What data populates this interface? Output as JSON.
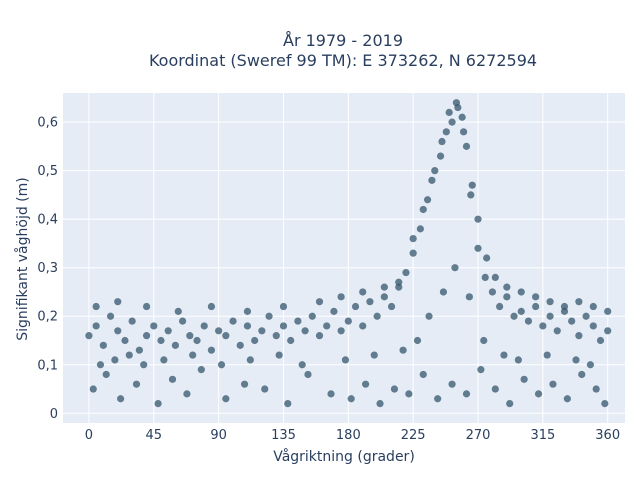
{
  "chart_data": {
    "type": "scatter",
    "title": [
      "År 1979 - 2019",
      "Koordinat (Sweref 99 TM): E 373262, N 6272594"
    ],
    "xlabel": "Vågriktning (grader)",
    "ylabel": "Signifikant våghöjd (m)",
    "xlim": [
      -18,
      372
    ],
    "ylim": [
      -0.02,
      0.66
    ],
    "x_ticks": [
      0,
      45,
      90,
      135,
      180,
      225,
      270,
      315,
      360
    ],
    "x_tick_labels": [
      "0",
      "45",
      "90",
      "135",
      "180",
      "225",
      "270",
      "315",
      "360"
    ],
    "y_ticks": [
      0,
      0.1,
      0.2,
      0.3,
      0.4,
      0.5,
      0.6
    ],
    "y_tick_labels": [
      "0",
      "0,1",
      "0,2",
      "0,3",
      "0,4",
      "0,5",
      "0,6"
    ],
    "grid": true,
    "marker_color": "#34566c",
    "plot_background": "#e5ecf6",
    "series": [
      {
        "points": [
          [
            0,
            0.16
          ],
          [
            5,
            0.18
          ],
          [
            10,
            0.14
          ],
          [
            15,
            0.2
          ],
          [
            20,
            0.17
          ],
          [
            25,
            0.15
          ],
          [
            30,
            0.19
          ],
          [
            35,
            0.13
          ],
          [
            40,
            0.16
          ],
          [
            45,
            0.18
          ],
          [
            50,
            0.15
          ],
          [
            55,
            0.17
          ],
          [
            60,
            0.14
          ],
          [
            65,
            0.19
          ],
          [
            70,
            0.16
          ],
          [
            75,
            0.15
          ],
          [
            80,
            0.18
          ],
          [
            85,
            0.13
          ],
          [
            90,
            0.17
          ],
          [
            95,
            0.16
          ],
          [
            100,
            0.19
          ],
          [
            105,
            0.14
          ],
          [
            110,
            0.18
          ],
          [
            115,
            0.15
          ],
          [
            120,
            0.17
          ],
          [
            125,
            0.2
          ],
          [
            130,
            0.16
          ],
          [
            135,
            0.18
          ],
          [
            140,
            0.15
          ],
          [
            145,
            0.19
          ],
          [
            150,
            0.17
          ],
          [
            155,
            0.2
          ],
          [
            160,
            0.16
          ],
          [
            165,
            0.18
          ],
          [
            170,
            0.21
          ],
          [
            175,
            0.17
          ],
          [
            180,
            0.19
          ],
          [
            185,
            0.22
          ],
          [
            190,
            0.18
          ],
          [
            195,
            0.23
          ],
          [
            200,
            0.2
          ],
          [
            205,
            0.24
          ],
          [
            210,
            0.22
          ],
          [
            215,
            0.26
          ],
          [
            220,
            0.29
          ],
          [
            225,
            0.33
          ],
          [
            230,
            0.38
          ],
          [
            235,
            0.44
          ],
          [
            240,
            0.5
          ],
          [
            245,
            0.56
          ],
          [
            250,
            0.62
          ],
          [
            255,
            0.64
          ],
          [
            260,
            0.58
          ],
          [
            265,
            0.45
          ],
          [
            270,
            0.34
          ],
          [
            275,
            0.28
          ],
          [
            280,
            0.25
          ],
          [
            285,
            0.22
          ],
          [
            290,
            0.24
          ],
          [
            295,
            0.2
          ],
          [
            300,
            0.21
          ],
          [
            305,
            0.19
          ],
          [
            310,
            0.22
          ],
          [
            315,
            0.18
          ],
          [
            320,
            0.2
          ],
          [
            325,
            0.17
          ],
          [
            330,
            0.21
          ],
          [
            335,
            0.19
          ],
          [
            340,
            0.16
          ],
          [
            345,
            0.2
          ],
          [
            350,
            0.18
          ],
          [
            355,
            0.15
          ],
          [
            360,
            0.17
          ],
          [
            3,
            0.05
          ],
          [
            12,
            0.08
          ],
          [
            22,
            0.03
          ],
          [
            33,
            0.06
          ],
          [
            48,
            0.02
          ],
          [
            58,
            0.07
          ],
          [
            68,
            0.04
          ],
          [
            78,
            0.09
          ],
          [
            95,
            0.03
          ],
          [
            108,
            0.06
          ],
          [
            122,
            0.05
          ],
          [
            138,
            0.02
          ],
          [
            152,
            0.08
          ],
          [
            168,
            0.04
          ],
          [
            182,
            0.03
          ],
          [
            192,
            0.06
          ],
          [
            202,
            0.02
          ],
          [
            212,
            0.05
          ],
          [
            222,
            0.04
          ],
          [
            232,
            0.08
          ],
          [
            242,
            0.03
          ],
          [
            252,
            0.06
          ],
          [
            262,
            0.04
          ],
          [
            272,
            0.09
          ],
          [
            282,
            0.05
          ],
          [
            292,
            0.02
          ],
          [
            302,
            0.07
          ],
          [
            312,
            0.04
          ],
          [
            322,
            0.06
          ],
          [
            332,
            0.03
          ],
          [
            342,
            0.08
          ],
          [
            352,
            0.05
          ],
          [
            358,
            0.02
          ],
          [
            5,
            0.22
          ],
          [
            20,
            0.23
          ],
          [
            40,
            0.22
          ],
          [
            62,
            0.21
          ],
          [
            85,
            0.22
          ],
          [
            110,
            0.21
          ],
          [
            135,
            0.22
          ],
          [
            160,
            0.23
          ],
          [
            175,
            0.24
          ],
          [
            190,
            0.25
          ],
          [
            205,
            0.26
          ],
          [
            215,
            0.27
          ],
          [
            225,
            0.36
          ],
          [
            232,
            0.42
          ],
          [
            238,
            0.48
          ],
          [
            244,
            0.53
          ],
          [
            248,
            0.58
          ],
          [
            252,
            0.6
          ],
          [
            256,
            0.63
          ],
          [
            259,
            0.61
          ],
          [
            262,
            0.55
          ],
          [
            266,
            0.47
          ],
          [
            270,
            0.4
          ],
          [
            276,
            0.32
          ],
          [
            282,
            0.28
          ],
          [
            290,
            0.26
          ],
          [
            300,
            0.25
          ],
          [
            310,
            0.24
          ],
          [
            320,
            0.23
          ],
          [
            330,
            0.22
          ],
          [
            340,
            0.23
          ],
          [
            350,
            0.22
          ],
          [
            360,
            0.21
          ],
          [
            8,
            0.1
          ],
          [
            18,
            0.11
          ],
          [
            28,
            0.12
          ],
          [
            38,
            0.1
          ],
          [
            52,
            0.11
          ],
          [
            72,
            0.12
          ],
          [
            92,
            0.1
          ],
          [
            112,
            0.11
          ],
          [
            132,
            0.12
          ],
          [
            148,
            0.1
          ],
          [
            178,
            0.11
          ],
          [
            198,
            0.12
          ],
          [
            218,
            0.13
          ],
          [
            228,
            0.15
          ],
          [
            236,
            0.2
          ],
          [
            246,
            0.25
          ],
          [
            254,
            0.3
          ],
          [
            264,
            0.24
          ],
          [
            274,
            0.15
          ],
          [
            288,
            0.12
          ],
          [
            298,
            0.11
          ],
          [
            318,
            0.12
          ],
          [
            338,
            0.11
          ],
          [
            348,
            0.1
          ]
        ]
      }
    ]
  }
}
